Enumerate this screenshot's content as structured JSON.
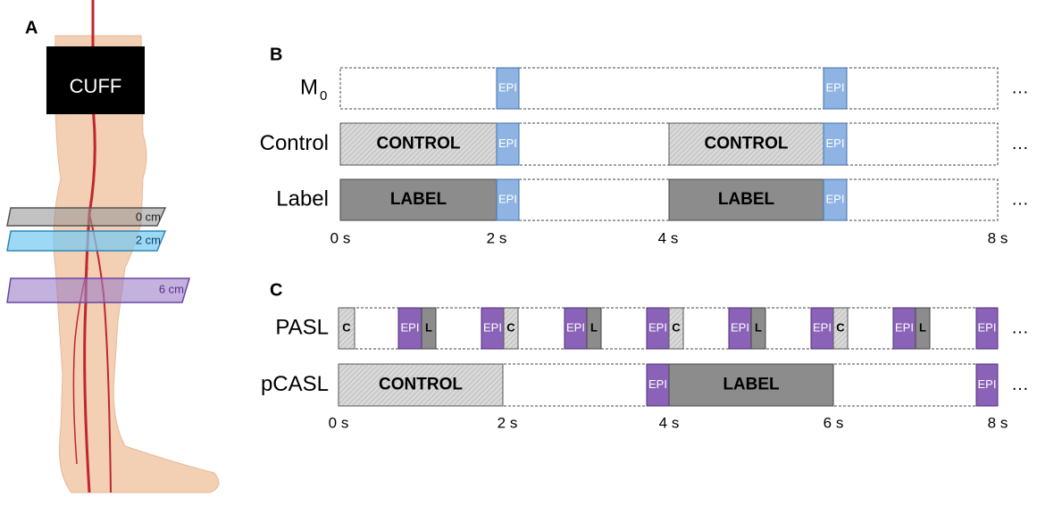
{
  "panel_a": {
    "label": "A",
    "cuff": "CUFF",
    "slices": [
      "0 cm",
      "2 cm",
      "6 cm"
    ]
  },
  "panel_b": {
    "label": "B",
    "rows": [
      {
        "name": "M",
        "name_sub": "0",
        "blocks": [
          "EPI",
          "EPI"
        ],
        "more": "…"
      },
      {
        "name": "Control",
        "blocks": [
          "CONTROL",
          "EPI",
          "CONTROL",
          "EPI"
        ],
        "more": "…"
      },
      {
        "name": "Label",
        "blocks": [
          "LABEL",
          "EPI",
          "LABEL",
          "EPI"
        ],
        "more": "…"
      }
    ],
    "ticks": [
      "0 s",
      "2 s",
      "4 s",
      "8 s"
    ]
  },
  "panel_c": {
    "label": "C",
    "rows": [
      {
        "name": "PASL",
        "blocks": [
          "C",
          "EPI",
          "L",
          "EPI",
          "C",
          "EPI",
          "L",
          "EPI",
          "C",
          "EPI",
          "L",
          "EPI",
          "C",
          "EPI",
          "L",
          "EPI"
        ],
        "more": "…"
      },
      {
        "name": "pCASL",
        "blocks": [
          "CONTROL",
          "EPI",
          "LABEL",
          "EPI"
        ],
        "more": "…"
      }
    ],
    "ticks": [
      "0 s",
      "2 s",
      "4 s",
      "6 s",
      "8 s"
    ]
  }
}
